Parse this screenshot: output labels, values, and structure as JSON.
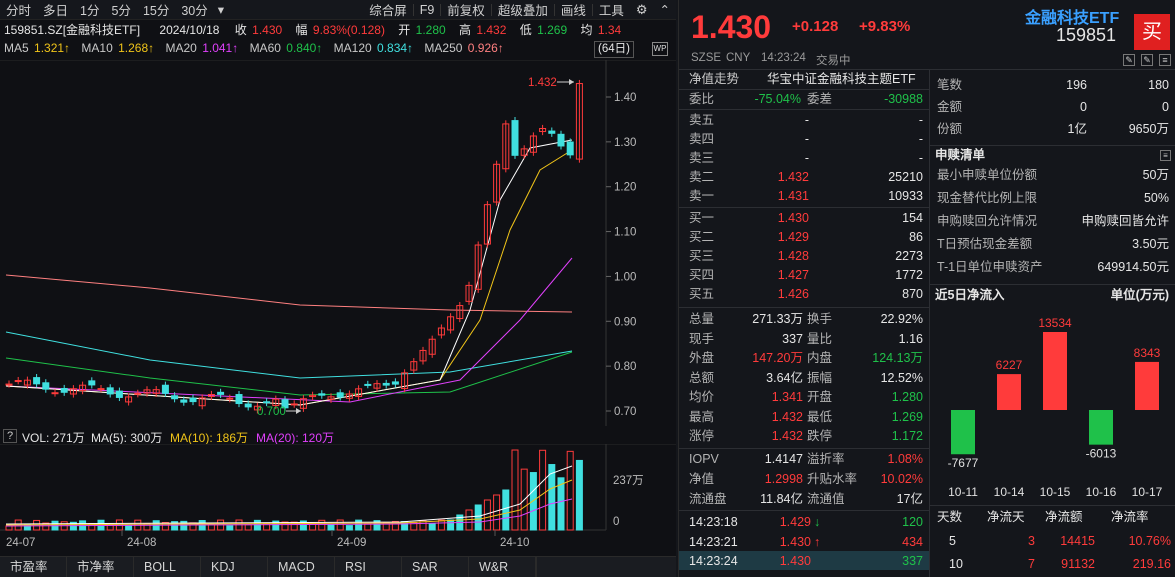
{
  "toolbar": {
    "left_tabs": [
      "分时",
      "多日",
      "1分",
      "5分",
      "15分",
      "30分"
    ],
    "dropdown_glyph": "▾",
    "right_tabs": [
      "综合屏",
      "F9",
      "前复权",
      "超级叠加",
      "画线",
      "工具"
    ],
    "icons": [
      "gear-icon",
      "up-icon"
    ]
  },
  "info": {
    "code_name": "159851.SZ[金融科技ETF]",
    "date": "2024/10/18",
    "close_label": "收",
    "close": "1.430",
    "amp_label": "幅",
    "amp": "9.83%(0.128)",
    "open_label": "开",
    "open": "1.280",
    "high_label": "高",
    "high": "1.432",
    "low_label": "低",
    "low": "1.269",
    "avg_label": "均",
    "avg": "1.34"
  },
  "ma": {
    "items": [
      {
        "label": "MA5",
        "value": "1.321↑",
        "color": "#e6e6e6",
        "vcolor": "#f0c419"
      },
      {
        "label": "MA10",
        "value": "1.268↑",
        "color": "#e6e6e6",
        "vcolor": "#f0c419"
      },
      {
        "label": "MA20",
        "value": "1.041↑",
        "color": "#e6e6e6",
        "vcolor": "#e040fb"
      },
      {
        "label": "MA60",
        "value": "0.840↑",
        "color": "#e6e6e6",
        "vcolor": "#1fc14a"
      },
      {
        "label": "MA120",
        "value": "0.834↑",
        "color": "#e6e6e6",
        "vcolor": "#40e0e0"
      },
      {
        "label": "MA250",
        "value": "0.926↑",
        "color": "#e6e6e6",
        "vcolor": "#ff8080"
      }
    ],
    "days": "(64日)"
  },
  "price_axis": [
    "1.40",
    "1.30",
    "1.20",
    "1.10",
    "1.00",
    "0.90",
    "0.80",
    "0.70"
  ],
  "annotations": {
    "high": "1.432",
    "low": "0.700"
  },
  "volume": {
    "label": "VOL: 271万",
    "ma5": "MA(5): 300万",
    "ma10": "MA(10): 186万",
    "ma20": "MA(20): 120万",
    "axis": [
      "237万",
      "0"
    ]
  },
  "date_axis": [
    "24-07",
    "24-08",
    "24-09",
    "24-10"
  ],
  "bottom_tabs": [
    "市盈率",
    "市净率",
    "BOLL",
    "KDJ",
    "MACD",
    "RSI",
    "SAR",
    "W&R"
  ],
  "quote": {
    "price": "1.430",
    "change": "+0.128",
    "pct": "+9.83%",
    "name": "金融科技ETF",
    "code": "159851",
    "buy_btn": "买",
    "exchange": "SZSE",
    "currency": "CNY",
    "time": "14:23:24",
    "status": "交易中"
  },
  "nav": {
    "label": "净值走势",
    "fund": "华宝中证金融科技主题ETF"
  },
  "ratio": {
    "wb_label": "委比",
    "wb": "-75.04%",
    "wc_label": "委差",
    "wc": "-30988"
  },
  "asks": [
    {
      "label": "卖五",
      "price": "-",
      "vol": "-"
    },
    {
      "label": "卖四",
      "price": "-",
      "vol": "-"
    },
    {
      "label": "卖三",
      "price": "-",
      "vol": "-"
    },
    {
      "label": "卖二",
      "price": "1.432",
      "vol": "25210"
    },
    {
      "label": "卖一",
      "price": "1.431",
      "vol": "10933"
    }
  ],
  "bids": [
    {
      "label": "买一",
      "price": "1.430",
      "vol": "154"
    },
    {
      "label": "买二",
      "price": "1.429",
      "vol": "86"
    },
    {
      "label": "买三",
      "price": "1.428",
      "vol": "2273"
    },
    {
      "label": "买四",
      "price": "1.427",
      "vol": "1772"
    },
    {
      "label": "买五",
      "price": "1.426",
      "vol": "870"
    }
  ],
  "stats": [
    {
      "l1": "总量",
      "v1": "271.33万",
      "c1": "white",
      "l2": "换手",
      "v2": "22.92%",
      "c2": "white"
    },
    {
      "l1": "现手",
      "v1": "337",
      "c1": "white",
      "l2": "量比",
      "v2": "1.16",
      "c2": "white"
    },
    {
      "l1": "外盘",
      "v1": "147.20万",
      "c1": "red",
      "l2": "内盘",
      "v2": "124.13万",
      "c2": "green"
    },
    {
      "l1": "总额",
      "v1": "3.64亿",
      "c1": "white",
      "l2": "振幅",
      "v2": "12.52%",
      "c2": "white"
    },
    {
      "l1": "均价",
      "v1": "1.341",
      "c1": "red",
      "l2": "开盘",
      "v2": "1.280",
      "c2": "green"
    },
    {
      "l1": "最高",
      "v1": "1.432",
      "c1": "red",
      "l2": "最低",
      "v2": "1.269",
      "c2": "green"
    },
    {
      "l1": "涨停",
      "v1": "1.432",
      "c1": "red",
      "l2": "跌停",
      "v2": "1.172",
      "c2": "green"
    }
  ],
  "stats2": [
    {
      "l1": "IOPV",
      "v1": "1.4147",
      "c1": "white",
      "l2": "溢折率",
      "v2": "1.08%",
      "c2": "red"
    },
    {
      "l1": "净值",
      "v1": "1.2998",
      "c1": "red",
      "l2": "升贴水率",
      "v2": "10.02%",
      "c2": "red"
    },
    {
      "l1": "流通盘",
      "v1": "11.84亿",
      "c1": "white",
      "l2": "流通值",
      "v2": "17亿",
      "c2": "white"
    }
  ],
  "ticks": [
    {
      "time": "14:23:18",
      "price": "1.429",
      "arrow": "↓",
      "vol": "120",
      "pc": "red",
      "vc": "green"
    },
    {
      "time": "14:23:21",
      "price": "1.430",
      "arrow": "↑",
      "vol": "434",
      "pc": "red",
      "vc": "red"
    },
    {
      "time": "14:23:24",
      "price": "1.430",
      "arrow": "",
      "vol": "337",
      "pc": "red",
      "vc": "green"
    }
  ],
  "fund_info": [
    {
      "label": "笔数",
      "v1": "196",
      "v2": "180"
    },
    {
      "label": "金额",
      "v1": "0",
      "v2": "0"
    },
    {
      "label": "份额",
      "v1": "1亿",
      "v2": "9650万"
    }
  ],
  "subscription": {
    "title": "申赎清单",
    "rows": [
      {
        "label": "最小申赎单位份额",
        "value": "50万"
      },
      {
        "label": "现金替代比例上限",
        "value": "50%"
      },
      {
        "label": "申购赎回允许情况",
        "value": "申购赎回皆允许"
      },
      {
        "label": "T日预估现金差额",
        "value": "3.50元"
      },
      {
        "label": "T-1日单位申赎资产",
        "value": "649914.50元"
      }
    ]
  },
  "netflow": {
    "title": "近5日净流入",
    "unit": "单位(万元)",
    "chart_data": {
      "type": "bar",
      "categories": [
        "10-11",
        "10-14",
        "10-15",
        "10-16",
        "10-17"
      ],
      "values": [
        -7677,
        6227,
        13534,
        -6013,
        8343
      ],
      "xlabel": "",
      "ylabel": ""
    },
    "table_headers": [
      "天数",
      "净流天",
      "净流额",
      "净流率"
    ],
    "table_rows": [
      {
        "days": "5",
        "flowdays": "3",
        "amount": "14415",
        "rate": "10.76%"
      },
      {
        "days": "10",
        "flowdays": "7",
        "amount": "91132",
        "rate": "219.16"
      }
    ]
  },
  "colors": {
    "up": "#ff3b3b",
    "down": "#1fc14a",
    "bg": "#0f1014"
  }
}
